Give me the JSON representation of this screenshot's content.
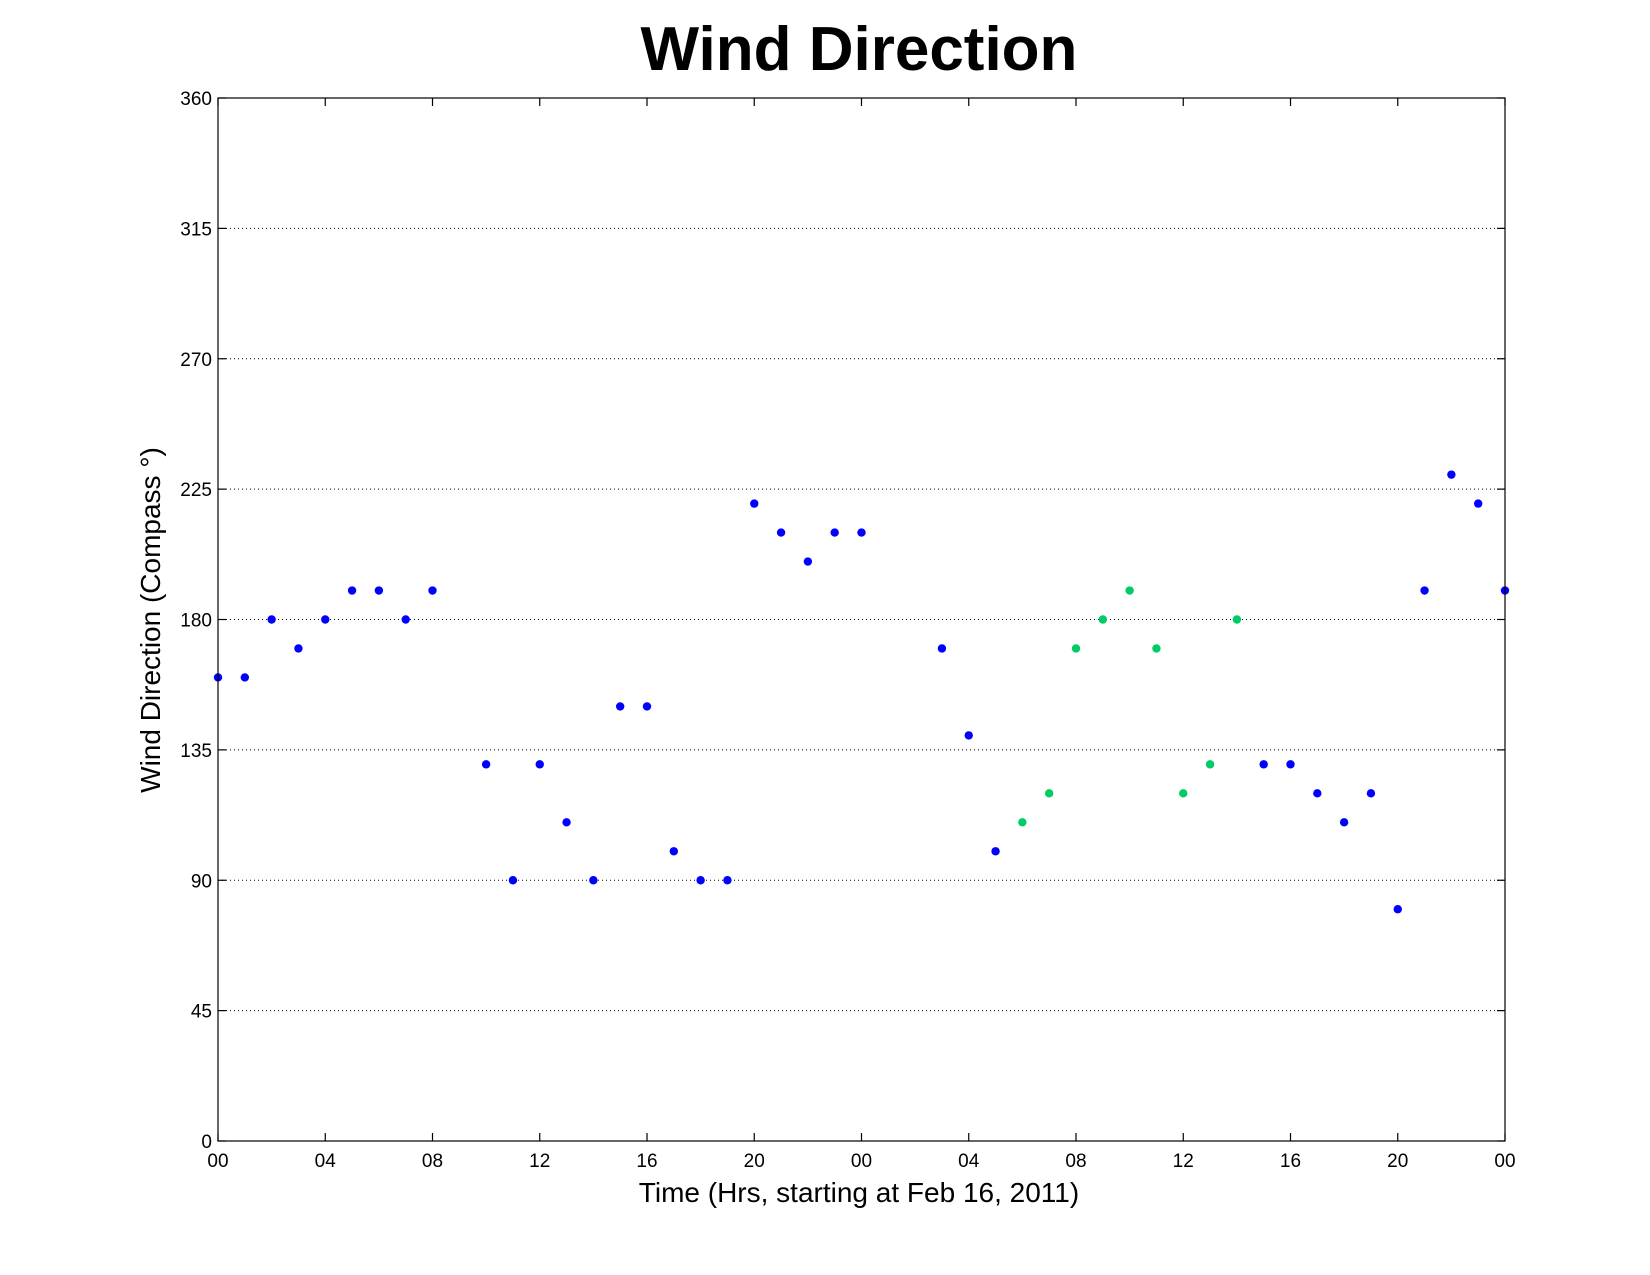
{
  "chart_data": {
    "type": "scatter",
    "title": "Wind Direction",
    "xlabel": "Time (Hrs, starting at Feb 16, 2011)",
    "ylabel": "Wind Direction (Compass  °)",
    "xlim": [
      0,
      48
    ],
    "ylim": [
      0,
      360
    ],
    "x_ticks": [
      0,
      4,
      8,
      12,
      16,
      20,
      24,
      28,
      32,
      36,
      40,
      44,
      48
    ],
    "x_tick_labels": [
      "00",
      "04",
      "08",
      "12",
      "16",
      "20",
      "00",
      "04",
      "08",
      "12",
      "16",
      "20",
      "00"
    ],
    "y_ticks": [
      0,
      45,
      90,
      135,
      180,
      225,
      270,
      315,
      360
    ],
    "y_tick_labels": [
      "0",
      "45",
      "90",
      "135",
      "180",
      "225",
      "270",
      "315",
      "360"
    ],
    "grid": "y",
    "colors": {
      "blue": "#0000ff",
      "green": "#00cc66"
    },
    "series": [
      {
        "color": "#0000ff",
        "points": [
          [
            0,
            160
          ],
          [
            1,
            160
          ],
          [
            2,
            180
          ],
          [
            3,
            170
          ],
          [
            4,
            180
          ],
          [
            5,
            190
          ],
          [
            6,
            190
          ],
          [
            7,
            180
          ],
          [
            8,
            190
          ],
          [
            10,
            130
          ],
          [
            11,
            90
          ],
          [
            12,
            130
          ],
          [
            13,
            110
          ],
          [
            14,
            90
          ],
          [
            15,
            150
          ],
          [
            16,
            150
          ],
          [
            17,
            100
          ],
          [
            18,
            90
          ],
          [
            19,
            90
          ],
          [
            20,
            220
          ],
          [
            21,
            210
          ],
          [
            22,
            200
          ],
          [
            23,
            210
          ],
          [
            24,
            210
          ],
          [
            27,
            170
          ],
          [
            28,
            140
          ],
          [
            29,
            100
          ],
          [
            39,
            130
          ],
          [
            40,
            130
          ],
          [
            41,
            120
          ],
          [
            42,
            110
          ],
          [
            43,
            120
          ],
          [
            44,
            80
          ],
          [
            45,
            190
          ],
          [
            46,
            230
          ],
          [
            47,
            220
          ],
          [
            48,
            190
          ]
        ]
      },
      {
        "color": "#00cc66",
        "points": [
          [
            30,
            110
          ],
          [
            31,
            120
          ],
          [
            32,
            170
          ],
          [
            33,
            180
          ],
          [
            34,
            190
          ],
          [
            35,
            170
          ],
          [
            36,
            120
          ],
          [
            37,
            130
          ],
          [
            38,
            180
          ]
        ]
      }
    ]
  }
}
